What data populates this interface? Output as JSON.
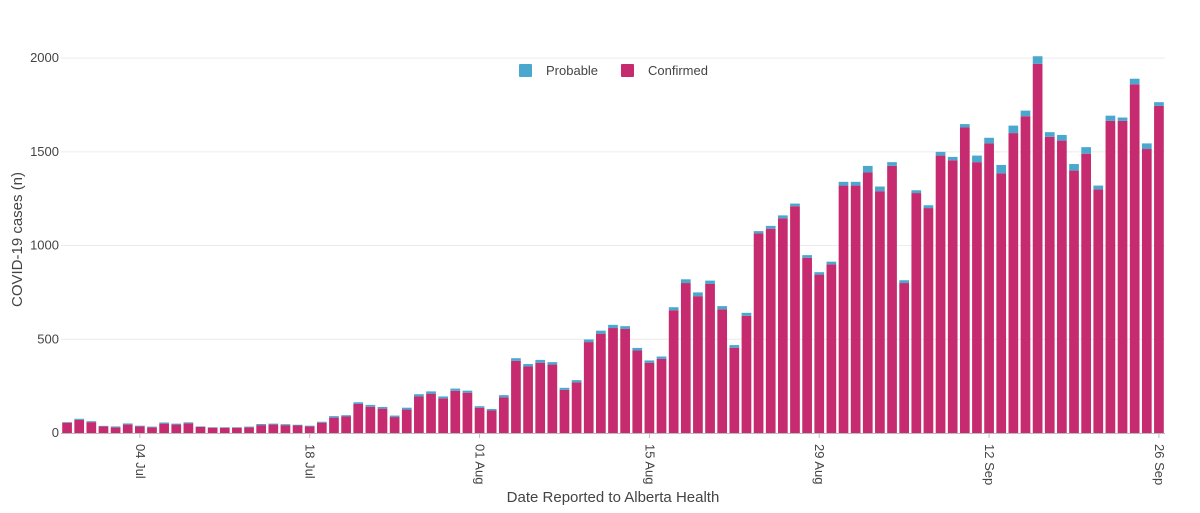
{
  "chart_data": {
    "type": "bar",
    "stacked": true,
    "title": "",
    "xlabel": "Date Reported to Alberta Health",
    "ylabel": "COVID-19 cases (n)",
    "ylim": [
      0,
      2150
    ],
    "yticks": [
      0,
      500,
      1000,
      1500,
      2000
    ],
    "start_date": "2021-06-28",
    "xticks": [
      {
        "label": "04 Jul",
        "day_index": 6
      },
      {
        "label": "18 Jul",
        "day_index": 20
      },
      {
        "label": "01 Aug",
        "day_index": 34
      },
      {
        "label": "15 Aug",
        "day_index": 48
      },
      {
        "label": "29 Aug",
        "day_index": 62
      },
      {
        "label": "12 Sep",
        "day_index": 76
      },
      {
        "label": "26 Sep",
        "day_index": 90
      }
    ],
    "legend": {
      "position": "top-center",
      "entries": [
        "Probable",
        "Confirmed"
      ]
    },
    "colors": {
      "Probable": "#4aa8cf",
      "Confirmed": "#c52b6e",
      "grid": "#ececec",
      "axis": "#bbbbbb"
    },
    "series": [
      {
        "name": "Confirmed",
        "values": [
          55,
          70,
          58,
          35,
          30,
          45,
          35,
          30,
          50,
          45,
          52,
          32,
          28,
          28,
          28,
          30,
          42,
          45,
          42,
          40,
          35,
          55,
          82,
          88,
          155,
          140,
          130,
          85,
          125,
          195,
          210,
          185,
          225,
          215,
          135,
          120,
          190,
          385,
          355,
          375,
          365,
          230,
          270,
          485,
          530,
          560,
          555,
          440,
          375,
          395,
          655,
          800,
          730,
          795,
          660,
          455,
          625,
          1065,
          1090,
          1145,
          1210,
          935,
          845,
          900,
          1320,
          1320,
          1390,
          1290,
          1425,
          800,
          1280,
          1200,
          1480,
          1455,
          1630,
          1445,
          1545,
          1385,
          1600,
          1690,
          1970,
          1580,
          1560,
          1400,
          1490,
          1300,
          1665,
          1665,
          1860,
          1515,
          1745
        ]
      },
      {
        "name": "Probable",
        "values": [
          3,
          6,
          5,
          3,
          5,
          6,
          4,
          4,
          6,
          5,
          5,
          3,
          3,
          3,
          3,
          4,
          6,
          5,
          5,
          4,
          4,
          5,
          8,
          7,
          9,
          10,
          9,
          8,
          10,
          12,
          12,
          10,
          12,
          11,
          8,
          8,
          12,
          14,
          13,
          15,
          13,
          11,
          12,
          14,
          16,
          17,
          15,
          14,
          12,
          13,
          16,
          20,
          20,
          18,
          17,
          14,
          16,
          12,
          15,
          16,
          14,
          14,
          13,
          14,
          20,
          20,
          35,
          25,
          20,
          15,
          15,
          15,
          20,
          18,
          18,
          35,
          30,
          45,
          40,
          30,
          40,
          25,
          30,
          35,
          35,
          20,
          28,
          18,
          30,
          30,
          20
        ]
      }
    ]
  }
}
